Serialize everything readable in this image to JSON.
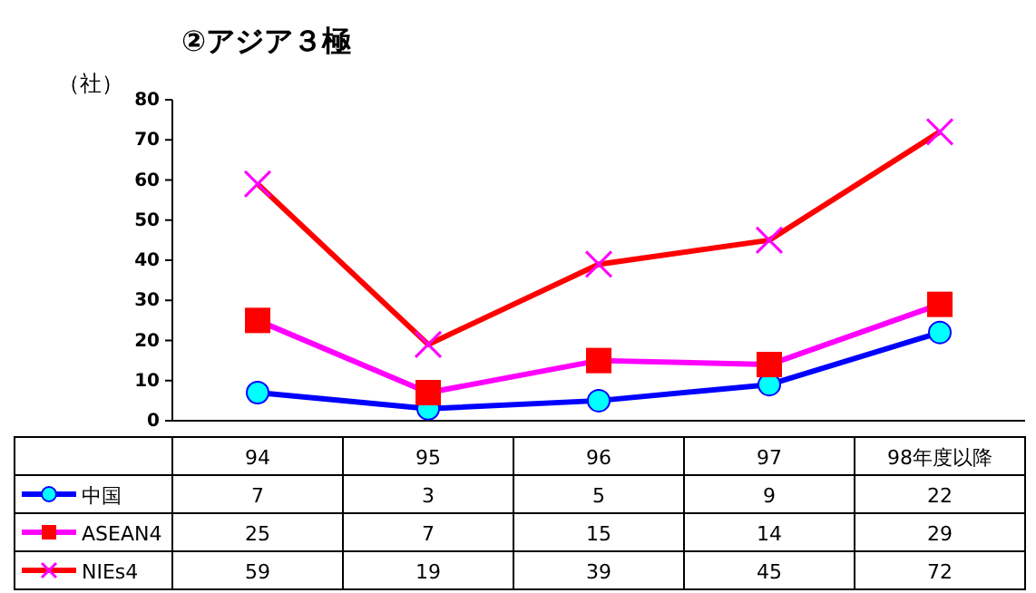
{
  "chart_data": {
    "type": "line",
    "title": "②アジア３極",
    "ylabel": "（社）",
    "categories": [
      "94",
      "95",
      "96",
      "97",
      "98年度以降"
    ],
    "series": [
      {
        "name": "中国",
        "color": "#0000ff",
        "marker": "circle",
        "values": [
          7,
          3,
          5,
          9,
          22
        ]
      },
      {
        "name": "ASEAN4",
        "color": "#ff00ff",
        "marker": "square",
        "values": [
          25,
          7,
          15,
          14,
          29
        ]
      },
      {
        "name": "NIEs4",
        "color": "#ff0000",
        "marker": "cross",
        "values": [
          59,
          19,
          39,
          45,
          72
        ]
      }
    ],
    "ylim": [
      0,
      80
    ],
    "yticks": [
      0,
      10,
      20,
      30,
      40,
      50,
      60,
      70,
      80
    ],
    "data_labels": true,
    "legend": "bottom left",
    "grid": false
  }
}
